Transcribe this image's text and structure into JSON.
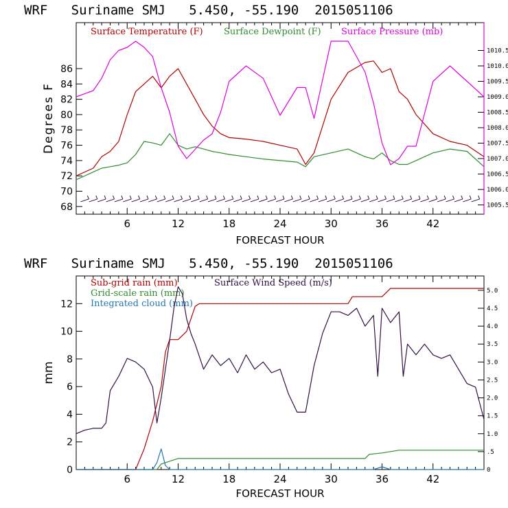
{
  "chart_data": [
    {
      "type": "line",
      "title": "WRF   Suriname SMJ   5.450, -55.190  2015051106",
      "xlabel": "FORECAST HOUR",
      "ylabel": "Degrees F",
      "xlim": [
        0,
        48
      ],
      "ylim": [
        67,
        92
      ],
      "y2lim": [
        1005.2,
        1011.4
      ],
      "xticks": [
        6,
        12,
        18,
        24,
        30,
        36,
        42
      ],
      "xtick_labels": [
        "6",
        "12",
        "18",
        "24",
        "30",
        "36",
        "42"
      ],
      "yticks": [
        68,
        70,
        72,
        74,
        76,
        78,
        80,
        82,
        84,
        86
      ],
      "ytick_labels": [
        "68",
        "70",
        "72",
        "74",
        "76",
        "78",
        "80",
        "82",
        "84",
        "86"
      ],
      "y2ticks": [
        1005.5,
        1006.0,
        1006.5,
        1007.0,
        1007.5,
        1008.0,
        1008.5,
        1009.0,
        1009.5,
        1010.0,
        1010.5
      ],
      "y2tick_labels": [
        "1005.5",
        "1006.0",
        "1006.5",
        "1007.0",
        "1007.5",
        "1008.0",
        "1008.5",
        "1009.0",
        "1009.5",
        "1010.0",
        "1010.5"
      ],
      "legend": [
        {
          "label": "Surface Temperature (F)",
          "color": "#b00000"
        },
        {
          "label": "Surface Dewpoint (F)",
          "color": "#2e8b2e"
        },
        {
          "label": "Surface Pressure (mb)",
          "color": "#e000e0"
        }
      ],
      "x": [
        0,
        2,
        3,
        4,
        5,
        6,
        7,
        8,
        9,
        10,
        11,
        12,
        13,
        14,
        15,
        16,
        17,
        18,
        20,
        22,
        24,
        26,
        27,
        28,
        30,
        32,
        34,
        35,
        36,
        37,
        38,
        39,
        40,
        42,
        44,
        46,
        48
      ],
      "series": [
        {
          "name": "Surface Temperature (F)",
          "color": "#b00000",
          "axis": "left",
          "values": [
            72.0,
            73.0,
            74.5,
            75.2,
            76.5,
            80.0,
            83.0,
            84.0,
            85.0,
            83.5,
            85.0,
            86.0,
            84.0,
            82.0,
            80.0,
            78.5,
            77.5,
            77.0,
            76.8,
            76.5,
            76.0,
            75.5,
            73.5,
            75.0,
            82.0,
            85.5,
            86.8,
            87.0,
            85.5,
            86.0,
            83.0,
            82.0,
            80.0,
            77.5,
            76.5,
            76.0,
            74.5
          ]
        },
        {
          "name": "Surface Dewpoint (F)",
          "color": "#2e8b2e",
          "axis": "left",
          "values": [
            71.5,
            72.5,
            73.0,
            73.2,
            73.4,
            73.7,
            74.8,
            76.5,
            76.3,
            76.0,
            77.5,
            76.0,
            75.5,
            75.8,
            75.5,
            75.2,
            75.0,
            74.8,
            74.5,
            74.2,
            74.0,
            73.8,
            73.2,
            74.5,
            75.0,
            75.5,
            74.5,
            74.2,
            75.0,
            74.0,
            73.5,
            73.5,
            74.0,
            75.0,
            75.5,
            75.2,
            73.2
          ]
        },
        {
          "name": "Surface Pressure (mb)",
          "color": "#e000e0",
          "axis": "right",
          "values": [
            1009.0,
            1009.2,
            1009.6,
            1010.2,
            1010.5,
            1010.6,
            1010.8,
            1010.6,
            1010.3,
            1009.3,
            1008.5,
            1007.4,
            1007.0,
            1007.3,
            1007.6,
            1007.8,
            1008.5,
            1009.5,
            1010.0,
            1009.6,
            1008.4,
            1009.3,
            1009.3,
            1008.3,
            1010.8,
            1010.8,
            1009.8,
            1008.8,
            1007.5,
            1006.8,
            1007.0,
            1007.4,
            1007.4,
            1009.5,
            1010.0,
            1009.5,
            1009.0
          ]
        }
      ],
      "wind_barbs": {
        "color": "#301040",
        "y_level": 68.8,
        "x": [
          1,
          2,
          3,
          4,
          5,
          6,
          7,
          8,
          9,
          10,
          11,
          12,
          13,
          14,
          15,
          16,
          17,
          18,
          19,
          20,
          21,
          22,
          23,
          24,
          25,
          26,
          27,
          28,
          29,
          30,
          31,
          32,
          33,
          34,
          35,
          36,
          37,
          38,
          39,
          40,
          41,
          42,
          43,
          44,
          45,
          46,
          47
        ]
      }
    },
    {
      "type": "line",
      "title": "WRF   Suriname SMJ   5.450, -55.190  2015051106",
      "xlabel": "FORECAST HOUR",
      "ylabel": "mm",
      "xlim": [
        0,
        48
      ],
      "ylim": [
        0,
        14
      ],
      "y2lim": [
        0,
        5.4
      ],
      "xticks": [
        6,
        12,
        18,
        24,
        30,
        36,
        42
      ],
      "xtick_labels": [
        "6",
        "12",
        "18",
        "24",
        "30",
        "36",
        "42"
      ],
      "yticks": [
        0,
        2,
        4,
        6,
        8,
        10,
        12
      ],
      "ytick_labels": [
        "0",
        "2",
        "4",
        "6",
        "8",
        "10",
        "12"
      ],
      "y2ticks": [
        0,
        0.5,
        1.0,
        1.5,
        2.0,
        2.5,
        3.0,
        3.5,
        4.0,
        4.5,
        5.0
      ],
      "y2tick_labels": [
        "0",
        ".5",
        "1.0",
        "1.5",
        "2.0",
        "2.5",
        "3.0",
        "3.5",
        "4.0",
        "4.5",
        "5.0"
      ],
      "legend": [
        {
          "label": "Sub-grid rain (mm)",
          "color": "#b00000"
        },
        {
          "label": "Surface Wind Speed (m/s)",
          "color": "#301040"
        },
        {
          "label": "Grid-scale rain (mm)",
          "color": "#2e8b2e"
        },
        {
          "label": "Integrated cloud (mm)",
          "color": "#1f77b4"
        }
      ],
      "series": [
        {
          "name": "Sub-grid rain (mm)",
          "color": "#b00000",
          "axis": "left",
          "x": [
            0,
            7,
            8,
            9,
            10,
            10.5,
            11,
            12,
            13,
            14,
            14.5,
            20,
            32,
            32.5,
            36,
            37,
            48
          ],
          "values": [
            0,
            0,
            1.5,
            3.5,
            6.0,
            8.5,
            9.4,
            9.4,
            10.0,
            11.8,
            12.0,
            12.0,
            12.0,
            12.5,
            12.5,
            13.1,
            13.1
          ]
        },
        {
          "name": "Surface Wind Speed (m/s)",
          "color": "#301040",
          "axis": "right",
          "x": [
            0,
            1,
            2,
            3,
            3.5,
            4,
            5,
            6,
            7,
            8,
            9,
            9.5,
            10,
            11,
            11.5,
            12,
            12.5,
            13,
            13.5,
            14,
            15,
            16,
            17,
            18,
            19,
            20,
            21,
            22,
            23,
            24,
            25,
            26,
            27,
            28,
            29,
            30,
            31,
            32,
            33,
            34,
            35,
            35.5,
            36,
            37,
            38,
            38.5,
            39,
            40,
            41,
            42,
            43,
            44,
            45,
            46,
            47,
            48
          ],
          "values": [
            1.0,
            1.1,
            1.15,
            1.15,
            1.3,
            2.2,
            2.6,
            3.1,
            3.0,
            2.8,
            2.3,
            1.3,
            2.0,
            3.6,
            4.5,
            5.1,
            4.9,
            4.2,
            3.8,
            3.5,
            2.8,
            3.2,
            2.9,
            3.1,
            2.7,
            3.2,
            2.8,
            3.0,
            2.7,
            2.8,
            2.1,
            1.6,
            1.6,
            2.9,
            3.8,
            4.4,
            4.4,
            4.3,
            4.5,
            4.0,
            4.3,
            2.6,
            4.5,
            4.1,
            4.4,
            2.6,
            3.5,
            3.2,
            3.5,
            3.2,
            3.1,
            3.2,
            2.8,
            2.4,
            2.3,
            1.4
          ]
        },
        {
          "name": "Grid-scale rain (mm)",
          "color": "#2e8b2e",
          "axis": "left",
          "x": [
            0,
            9.5,
            10,
            11,
            12,
            20,
            30,
            34,
            34.5,
            36,
            38,
            48
          ],
          "values": [
            0,
            0,
            0.4,
            0.6,
            0.8,
            0.8,
            0.8,
            0.8,
            1.1,
            1.2,
            1.4,
            1.4
          ]
        },
        {
          "name": "Integrated cloud (mm)",
          "color": "#1f77b4",
          "axis": "left",
          "x": [
            0,
            9,
            9.5,
            10,
            10.5,
            11,
            20,
            35,
            36,
            37,
            48
          ],
          "values": [
            0,
            0,
            0.5,
            1.5,
            0.3,
            0,
            0,
            0,
            0.2,
            0,
            0
          ]
        }
      ]
    }
  ]
}
